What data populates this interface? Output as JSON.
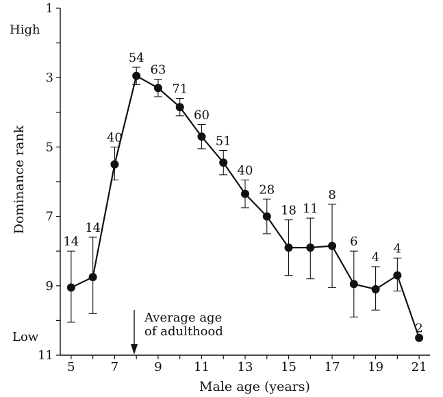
{
  "chart_data": {
    "type": "line",
    "xlabel": "Male age (years)",
    "ylabel": "Dominance rank",
    "xlim": [
      4.5,
      21.5
    ],
    "ylim": [
      11,
      1
    ],
    "y_inverted": true,
    "grid": false,
    "x_ticks": [
      5,
      7,
      9,
      11,
      13,
      15,
      17,
      19,
      21
    ],
    "y_ticks": [
      1,
      3,
      5,
      7,
      9,
      11
    ],
    "y_top_label": "High",
    "y_bottom_label": "Low",
    "annotation": {
      "text_line1": "Average age",
      "text_line2": "of adulthood",
      "x": 7.9
    },
    "series": [
      {
        "x": [
          5,
          6,
          7,
          8,
          9,
          10,
          11,
          12,
          13,
          14,
          15,
          16,
          17,
          18,
          19,
          20,
          21
        ],
        "y": [
          9.05,
          8.75,
          5.5,
          2.95,
          3.3,
          3.85,
          4.7,
          5.45,
          6.35,
          7.0,
          7.9,
          7.9,
          7.85,
          8.95,
          9.1,
          8.7,
          10.5
        ],
        "y_low": [
          8.0,
          7.6,
          5.0,
          2.7,
          3.05,
          3.6,
          4.35,
          5.1,
          5.95,
          6.5,
          7.1,
          7.05,
          6.65,
          8.0,
          8.45,
          8.2,
          10.5
        ],
        "y_high": [
          10.05,
          9.8,
          5.95,
          3.2,
          3.55,
          4.1,
          5.05,
          5.8,
          6.75,
          7.5,
          8.7,
          8.8,
          9.05,
          9.9,
          9.7,
          9.15,
          10.5
        ],
        "n": [
          "14",
          "14",
          "40",
          "54",
          "63",
          "71",
          "60",
          "51",
          "40",
          "28",
          "18",
          "11",
          "8",
          "6",
          "4",
          "4",
          "2"
        ]
      }
    ]
  }
}
